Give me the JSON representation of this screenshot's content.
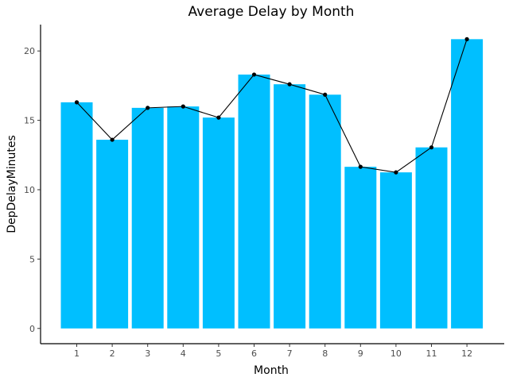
{
  "chart_data": {
    "type": "bar",
    "title": "Average Delay by Month",
    "xlabel": "Month",
    "ylabel": "DepDelayMinutes",
    "categories": [
      "1",
      "2",
      "3",
      "4",
      "5",
      "6",
      "7",
      "8",
      "9",
      "10",
      "11",
      "12"
    ],
    "values": [
      16.3,
      13.6,
      15.9,
      16.0,
      15.2,
      18.3,
      17.6,
      16.85,
      11.65,
      11.25,
      13.05,
      20.85
    ],
    "line_values": [
      16.3,
      13.6,
      15.9,
      16.0,
      15.2,
      18.3,
      17.6,
      16.85,
      11.65,
      11.25,
      13.05,
      20.85
    ],
    "ylim": [
      -1.1,
      21.9
    ],
    "yticks": [
      0,
      5,
      10,
      15,
      20
    ],
    "ytick_labels": [
      "0",
      "5",
      "10",
      "15",
      "20"
    ],
    "bar_color": "#00bfff",
    "line_color": "#000000",
    "grid": false,
    "legend": "none"
  }
}
